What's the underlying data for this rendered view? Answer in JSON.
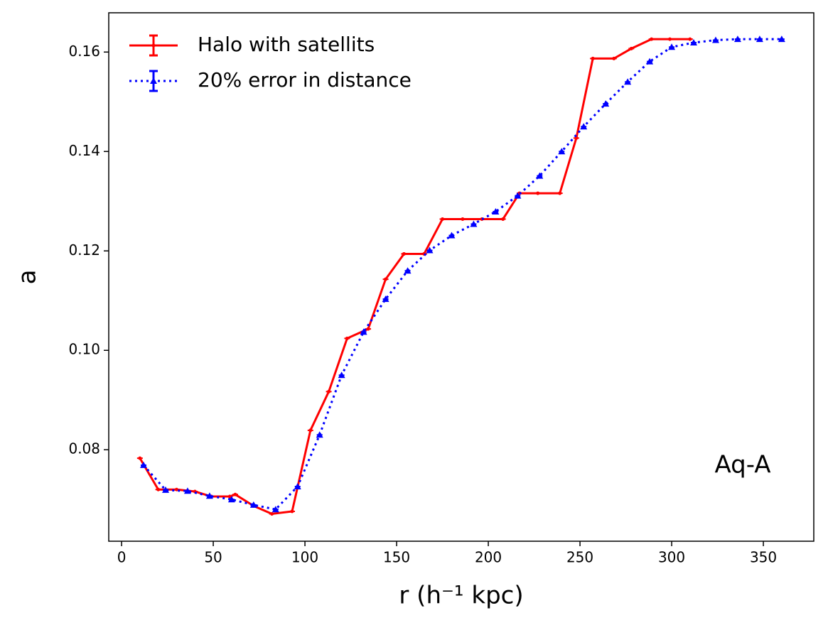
{
  "chart_data": {
    "type": "line",
    "xlabel": "r (h⁻¹ kpc)",
    "ylabel": "a",
    "annotation": "Aq-A",
    "xlim": [
      -7,
      377.5
    ],
    "ylim": [
      0.0616,
      0.1679
    ],
    "xticks": [
      0,
      50,
      100,
      150,
      200,
      250,
      300,
      350
    ],
    "yticks": [
      0.08,
      {
        "value": 0.1,
        "label": "0.10"
      },
      0.12,
      0.14,
      0.16
    ],
    "legend": "upper left",
    "series": [
      {
        "name": "Halo with satellits",
        "color": "#ff0000",
        "style": "solid",
        "marker": "dot",
        "x": [
          10,
          20,
          30,
          40,
          49,
          59,
          62,
          72,
          82,
          93,
          103,
          113,
          123,
          134.5,
          144,
          154,
          165,
          175,
          186,
          196.5,
          208,
          217,
          227,
          239,
          248,
          257,
          268.5,
          278,
          289,
          299,
          310
        ],
        "values": [
          0.0783,
          0.072,
          0.072,
          0.0716,
          0.0706,
          0.0706,
          0.071,
          0.0687,
          0.0671,
          0.0676,
          0.0839,
          0.0917,
          0.1024,
          0.1043,
          0.1143,
          0.1194,
          0.1194,
          0.1264,
          0.1264,
          0.1264,
          0.1264,
          0.1316,
          0.1316,
          0.1316,
          0.1427,
          0.1587,
          0.1587,
          0.1607,
          0.1626,
          0.1626,
          0.1626
        ]
      },
      {
        "name": "20% error in distance",
        "color": "#0000ff",
        "style": "dotted",
        "marker": "triangle",
        "x": [
          12,
          24,
          36,
          48,
          60,
          72,
          84,
          96,
          108,
          120,
          132,
          144,
          156,
          168,
          180,
          192,
          204,
          216,
          228,
          240,
          252,
          264,
          276,
          288,
          300,
          312,
          324,
          336,
          348,
          360
        ],
        "values": [
          0.0769,
          0.0719,
          0.0717,
          0.0707,
          0.07,
          0.0689,
          0.068,
          0.0726,
          0.083,
          0.095,
          0.1037,
          0.1103,
          0.116,
          0.1201,
          0.1231,
          0.1254,
          0.1279,
          0.1311,
          0.1351,
          0.14,
          0.145,
          0.1496,
          0.154,
          0.1581,
          0.161,
          0.1619,
          0.1624,
          0.1626,
          0.1626,
          0.1626
        ]
      }
    ]
  }
}
